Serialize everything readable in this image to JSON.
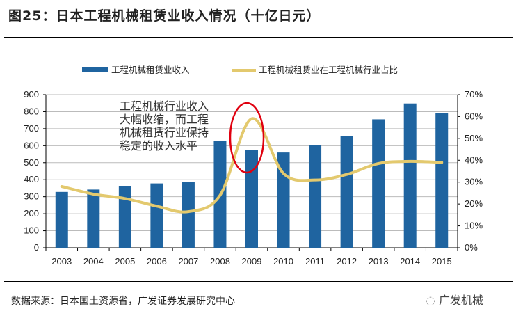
{
  "title": "图25：日本工程机械租赁业收入情况（十亿日元）",
  "source": "数据来源：日本国土资源省，广发证券发展研究中心",
  "brand": "广发机械",
  "chart_data": {
    "type": "bar+line",
    "categories": [
      "2003",
      "2004",
      "2005",
      "2006",
      "2007",
      "2008",
      "2009",
      "2010",
      "2011",
      "2012",
      "2013",
      "2014",
      "2015"
    ],
    "series": [
      {
        "name": "工程机械租赁业收入",
        "type": "bar",
        "axis": "left",
        "color": "#1F64A0",
        "values": [
          328,
          342,
          360,
          378,
          385,
          630,
          575,
          560,
          605,
          657,
          755,
          848,
          793
        ]
      },
      {
        "name": "工程机械租赁业在工程机械行业占比",
        "type": "line",
        "axis": "right",
        "color": "#E3C96E",
        "values": [
          28,
          24.5,
          22.5,
          19,
          16.5,
          24,
          59,
          34,
          31,
          33.5,
          38.5,
          39.5,
          39
        ]
      }
    ],
    "y_left": {
      "lim": [
        0,
        900
      ],
      "ticks": [
        "0",
        "100",
        "200",
        "300",
        "400",
        "500",
        "600",
        "700",
        "800",
        "900"
      ]
    },
    "y_right": {
      "lim": [
        0,
        70
      ],
      "ticks": [
        "0%",
        "10%",
        "20%",
        "30%",
        "40%",
        "50%",
        "60%",
        "70%"
      ]
    },
    "grid": true,
    "legend": "top",
    "annotation": [
      "工程机械行业收入",
      "大幅收缩，而工程",
      "机械租赁行业保持",
      "稳定的收入水平"
    ],
    "highlight_color": "#E0000F"
  }
}
